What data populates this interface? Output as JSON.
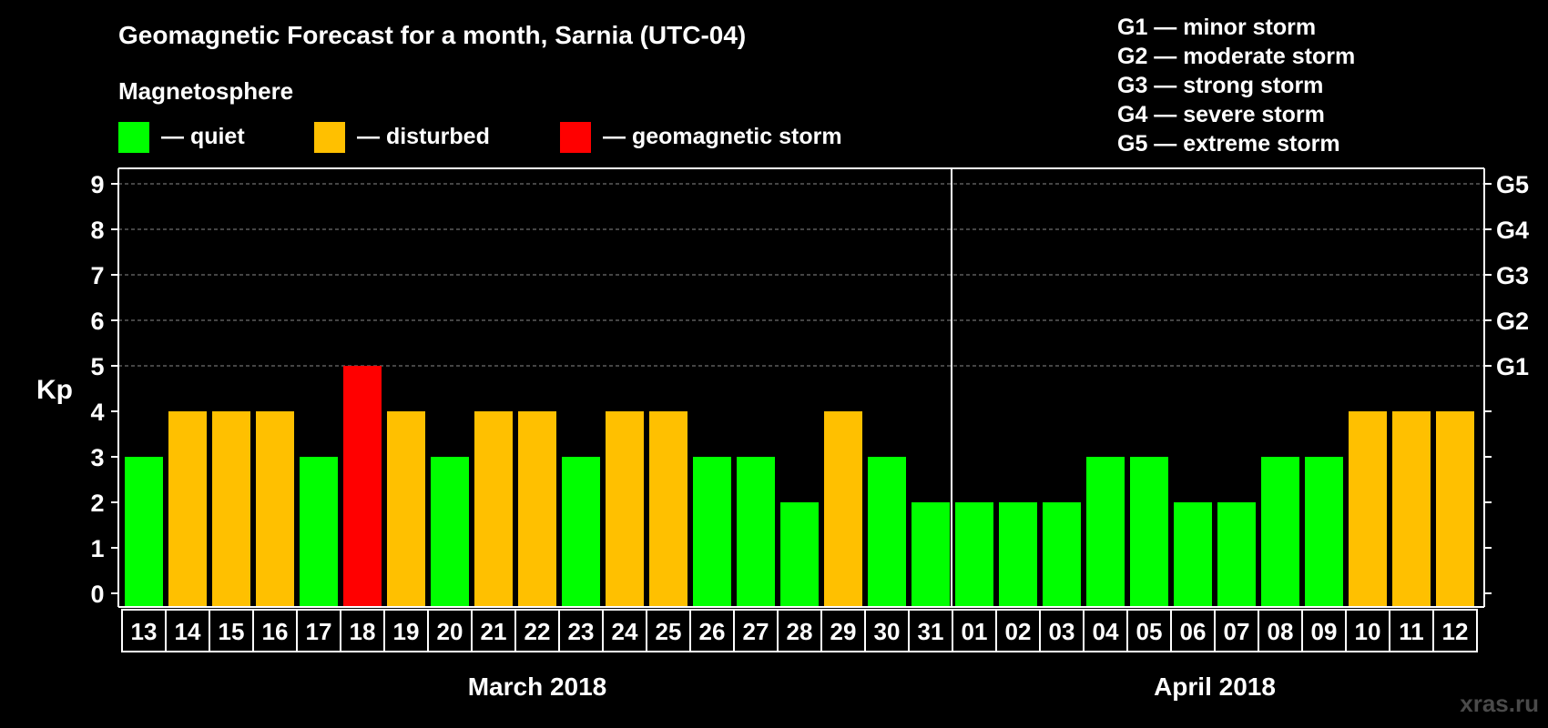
{
  "chart_data": {
    "type": "bar",
    "title": "Geomagnetic Forecast for a month, Sarnia (UTC-04)",
    "ylabel": "Kp",
    "ylim": [
      0,
      9
    ],
    "y_ticks": [
      "0",
      "1",
      "2",
      "3",
      "4",
      "5",
      "6",
      "7",
      "8",
      "9"
    ],
    "right_axis_labels": [
      {
        "kp": 5,
        "label": "G1"
      },
      {
        "kp": 6,
        "label": "G2"
      },
      {
        "kp": 7,
        "label": "G3"
      },
      {
        "kp": 8,
        "label": "G4"
      },
      {
        "kp": 9,
        "label": "G5"
      }
    ],
    "grid": true,
    "categories": [
      "13",
      "14",
      "15",
      "16",
      "17",
      "18",
      "19",
      "20",
      "21",
      "22",
      "23",
      "24",
      "25",
      "26",
      "27",
      "28",
      "29",
      "30",
      "31",
      "01",
      "02",
      "03",
      "04",
      "05",
      "06",
      "07",
      "08",
      "09",
      "10",
      "11",
      "12"
    ],
    "values": [
      3,
      4,
      4,
      4,
      3,
      5,
      4,
      3,
      4,
      4,
      3,
      4,
      4,
      3,
      3,
      2,
      4,
      3,
      2,
      2,
      2,
      2,
      3,
      3,
      2,
      2,
      3,
      3,
      4,
      4,
      4
    ],
    "month_groups": [
      {
        "label": "March 2018",
        "start_index": 0,
        "end_index": 18
      },
      {
        "label": "April 2018",
        "start_index": 19,
        "end_index": 30
      }
    ],
    "status_colors": {
      "quiet": "#00ff00",
      "disturbed": "#ffc000",
      "storm": "#ff0000"
    },
    "legend": {
      "heading": "Magnetosphere",
      "items": [
        {
          "label": "— quiet",
          "color": "#00ff00"
        },
        {
          "label": "— disturbed",
          "color": "#ffc000"
        },
        {
          "label": "— geomagnetic storm",
          "color": "#ff0000"
        }
      ]
    },
    "storm_scale": [
      "G1 — minor storm",
      "G2 — moderate storm",
      "G3 — strong storm",
      "G4 — severe storm",
      "G5 — extreme storm"
    ]
  },
  "watermark": "xras.ru"
}
